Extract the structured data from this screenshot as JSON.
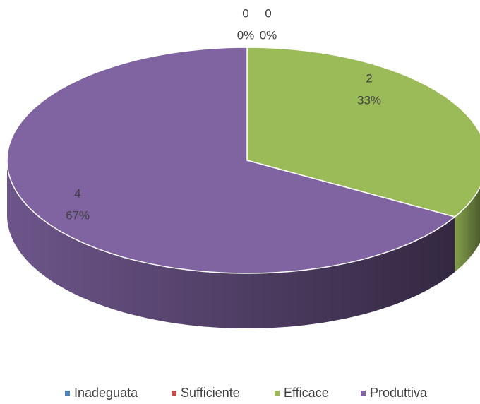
{
  "chart_data": {
    "type": "pie",
    "categories": [
      "Inadeguata",
      "Sufficiente",
      "Efficace",
      "Produttiva"
    ],
    "values": [
      0,
      0,
      2,
      4
    ],
    "value_labels": [
      "0%",
      "0%",
      "33%",
      "67%"
    ],
    "colors": [
      "#4f81bd",
      "#c0504d",
      "#9bbb59",
      "#8064a2"
    ],
    "legend": "bottom"
  }
}
